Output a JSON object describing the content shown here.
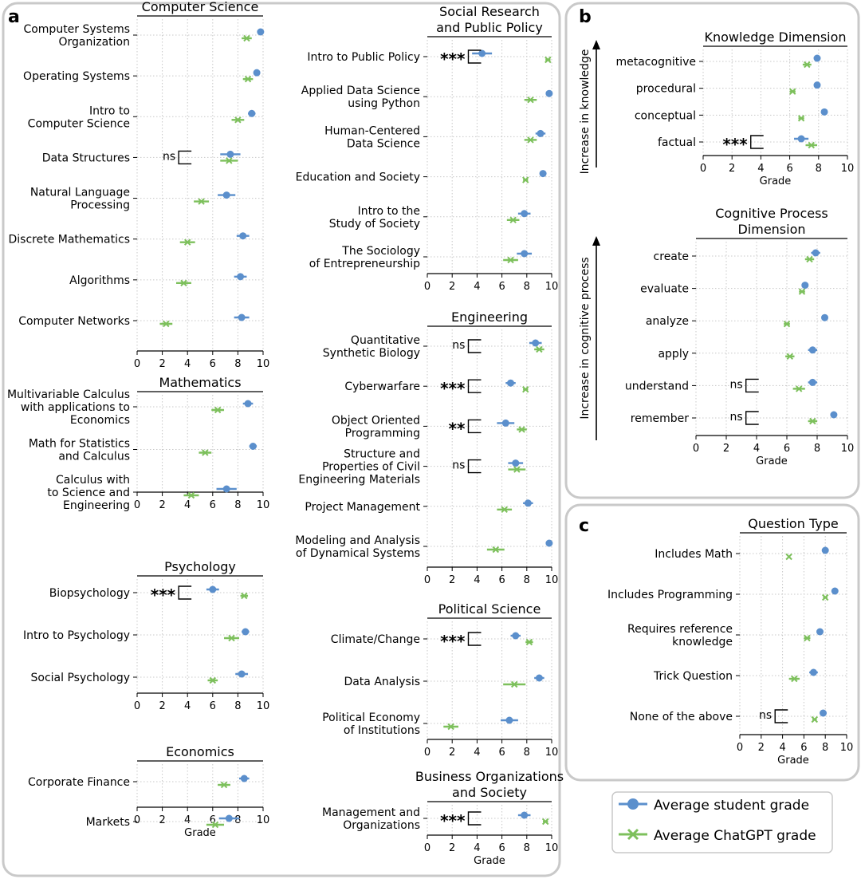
{
  "panel_labels": [
    "a",
    "b",
    "c"
  ],
  "legend": {
    "student_label": "Average student grade",
    "chatgpt_label": "Average ChatGPT grade"
  },
  "colors": {
    "student": "#5b8fcc",
    "chatgpt": "#7dc05c",
    "grid": "#c8c8c8",
    "panel_border": "#c9c9c9"
  },
  "side_annotations": {
    "knowledge": "Increase in knowledge",
    "cognitive": "Increase in cognitive process"
  },
  "chart_data": [
    {
      "type": "dot-whisker",
      "title": "Computer Science",
      "xlabel": "",
      "xlim": [
        0,
        10
      ],
      "xticks": [
        0,
        2,
        4,
        6,
        8,
        10
      ],
      "categories": [
        "Computer Systems\nOrganization",
        "Operating Systems",
        "Intro to\nComputer Science",
        "Data Structures",
        "Natural Language\nProcessing",
        "Discrete Mathematics",
        "Algorithms",
        "Computer Networks"
      ],
      "series": [
        {
          "name": "Average student grade",
          "values": [
            9.8,
            9.5,
            9.1,
            7.4,
            7.1,
            8.4,
            8.2,
            8.3
          ],
          "errors": [
            0.2,
            0.2,
            0.3,
            0.8,
            0.7,
            0.5,
            0.5,
            0.6
          ]
        },
        {
          "name": "Average ChatGPT grade",
          "values": [
            8.7,
            8.8,
            8.0,
            7.3,
            5.1,
            4.0,
            3.7,
            2.3
          ],
          "errors": [
            0.4,
            0.4,
            0.5,
            0.7,
            0.6,
            0.6,
            0.6,
            0.5
          ]
        }
      ],
      "annotations": [
        {
          "category": "Data Structures",
          "text": "ns"
        }
      ]
    },
    {
      "type": "dot-whisker",
      "title": "Mathematics",
      "xlabel": "",
      "xlim": [
        0,
        10
      ],
      "xticks": [
        0,
        2,
        4,
        6,
        8,
        10
      ],
      "categories": [
        "Multivariable Calculus\nwith applications to\nEconomics",
        "Math for Statistics\nand Calculus",
        "Calculus with\nto Science and\nEngineering"
      ],
      "series": [
        {
          "name": "Average student grade",
          "values": [
            8.8,
            9.2,
            7.1
          ],
          "errors": [
            0.4,
            0.3,
            0.8
          ]
        },
        {
          "name": "Average ChatGPT grade",
          "values": [
            6.4,
            5.4,
            4.3
          ],
          "errors": [
            0.5,
            0.5,
            0.6
          ]
        }
      ],
      "annotations": []
    },
    {
      "type": "dot-whisker",
      "title": "Psychology",
      "xlabel": "",
      "xlim": [
        0,
        10
      ],
      "xticks": [
        0,
        2,
        4,
        6,
        8,
        10
      ],
      "categories": [
        "Biopsychology",
        "Intro to Psychology",
        "Social Psychology"
      ],
      "series": [
        {
          "name": "Average student grade",
          "values": [
            6.0,
            8.6,
            8.3
          ],
          "errors": [
            0.5,
            0.3,
            0.5
          ]
        },
        {
          "name": "Average ChatGPT grade",
          "values": [
            8.5,
            7.5,
            6.0
          ],
          "errors": [
            0.3,
            0.6,
            0.4
          ]
        }
      ],
      "annotations": [
        {
          "category": "Biopsychology",
          "text": "***"
        }
      ]
    },
    {
      "type": "dot-whisker",
      "title": "Economics",
      "xlabel": "Grade",
      "xlim": [
        0,
        10
      ],
      "xticks": [
        0,
        2,
        4,
        6,
        8,
        10
      ],
      "categories": [
        "Corporate Finance",
        "Markets"
      ],
      "series": [
        {
          "name": "Average student grade",
          "values": [
            8.5,
            7.3
          ],
          "errors": [
            0.4,
            0.8
          ]
        },
        {
          "name": "Average ChatGPT grade",
          "values": [
            6.9,
            6.2
          ],
          "errors": [
            0.5,
            0.7
          ]
        }
      ],
      "annotations": []
    },
    {
      "type": "dot-whisker",
      "title": "Social Research\nand Public Policy",
      "xlabel": "",
      "xlim": [
        0,
        10
      ],
      "xticks": [
        0,
        2,
        4,
        6,
        8,
        10
      ],
      "categories": [
        "Intro to Public Policy",
        "Applied Data Science\nusing Python",
        "Human-Centered\nData Science",
        "Education and Society",
        "Intro to the\nStudy of Society",
        "The Sociology\nof Entrepreneurship"
      ],
      "series": [
        {
          "name": "Average student grade",
          "values": [
            4.4,
            9.8,
            9.1,
            9.3,
            7.8,
            7.8
          ],
          "errors": [
            0.8,
            0.2,
            0.4,
            0.1,
            0.5,
            0.6
          ]
        },
        {
          "name": "Average ChatGPT grade",
          "values": [
            9.7,
            8.3,
            8.3,
            7.9,
            6.9,
            6.7
          ],
          "errors": [
            0.2,
            0.5,
            0.5,
            0.2,
            0.5,
            0.6
          ]
        }
      ],
      "annotations": [
        {
          "category": "Intro to Public Policy",
          "text": "***"
        }
      ]
    },
    {
      "type": "dot-whisker",
      "title": "Engineering",
      "xlabel": "",
      "xlim": [
        0,
        10
      ],
      "xticks": [
        0,
        2,
        4,
        6,
        8,
        10
      ],
      "categories": [
        "Quantitative\nSynthetic Biology",
        "Cyberwarfare",
        "Object Oriented\nProgramming",
        "Structure and\nProperties of Civil\nEngineering Materials",
        "Project Management",
        "Modeling and Analysis\nof Dynamical Systems"
      ],
      "series": [
        {
          "name": "Average student grade",
          "values": [
            8.7,
            6.7,
            6.3,
            7.1,
            8.1,
            9.8
          ],
          "errors": [
            0.5,
            0.4,
            0.7,
            0.6,
            0.4,
            0.1
          ]
        },
        {
          "name": "Average ChatGPT grade",
          "values": [
            9.0,
            7.9,
            7.6,
            7.2,
            6.2,
            5.5
          ],
          "errors": [
            0.4,
            0.2,
            0.4,
            0.7,
            0.6,
            0.7
          ]
        }
      ],
      "annotations": [
        {
          "category": "Quantitative\nSynthetic Biology",
          "text": "ns"
        },
        {
          "category": "Cyberwarfare",
          "text": "***"
        },
        {
          "category": "Object Oriented\nProgramming",
          "text": "**"
        },
        {
          "category": "Structure and\nProperties of Civil\nEngineering Materials",
          "text": "ns"
        }
      ]
    },
    {
      "type": "dot-whisker",
      "title": "Political Science",
      "xlabel": "",
      "xlim": [
        0,
        10
      ],
      "xticks": [
        0,
        2,
        4,
        6,
        8,
        10
      ],
      "categories": [
        "Climate/Change",
        "Data Analysis",
        "Political Economy\nof Institutions"
      ],
      "series": [
        {
          "name": "Average student grade",
          "values": [
            7.1,
            9.0,
            6.6
          ],
          "errors": [
            0.4,
            0.4,
            0.7
          ]
        },
        {
          "name": "Average ChatGPT grade",
          "values": [
            8.2,
            7.0,
            1.9
          ],
          "errors": [
            0.3,
            0.9,
            0.6
          ]
        }
      ],
      "annotations": [
        {
          "category": "Climate/Change",
          "text": "***"
        }
      ]
    },
    {
      "type": "dot-whisker",
      "title": "Business Organizations\nand Society",
      "xlabel": "Grade",
      "xlim": [
        0,
        10
      ],
      "xticks": [
        0,
        2,
        4,
        6,
        8,
        10
      ],
      "categories": [
        "Management and\nOrganizations"
      ],
      "series": [
        {
          "name": "Average student grade",
          "values": [
            7.8
          ],
          "errors": [
            0.5
          ]
        },
        {
          "name": "Average ChatGPT grade",
          "values": [
            9.5
          ],
          "errors": [
            0.2
          ]
        }
      ],
      "annotations": [
        {
          "category": "Management and\nOrganizations",
          "text": "***"
        }
      ]
    },
    {
      "type": "dot-whisker",
      "title": "Knowledge Dimension",
      "xlabel": "Grade",
      "xlim": [
        0,
        10
      ],
      "xticks": [
        0,
        2,
        4,
        6,
        8,
        10
      ],
      "categories": [
        "metacognitive",
        "procedural",
        "conceptual",
        "factual"
      ],
      "series": [
        {
          "name": "Average student grade",
          "values": [
            7.9,
            7.9,
            8.4,
            6.8
          ],
          "errors": [
            0.2,
            0.1,
            0.1,
            0.5
          ]
        },
        {
          "name": "Average ChatGPT grade",
          "values": [
            7.2,
            6.2,
            6.8,
            7.5
          ],
          "errors": [
            0.3,
            0.2,
            0.2,
            0.4
          ]
        }
      ],
      "annotations": [
        {
          "category": "factual",
          "text": "***"
        }
      ]
    },
    {
      "type": "dot-whisker",
      "title": "Cognitive Process\nDimension",
      "xlabel": "Grade",
      "xlim": [
        0,
        10
      ],
      "xticks": [
        0,
        2,
        4,
        6,
        8,
        10
      ],
      "categories": [
        "create",
        "evaluate",
        "analyze",
        "apply",
        "understand",
        "remember"
      ],
      "series": [
        {
          "name": "Average student grade",
          "values": [
            7.9,
            7.2,
            8.5,
            7.7,
            7.7,
            9.1
          ],
          "errors": [
            0.3,
            0.2,
            0.1,
            0.3,
            0.3,
            0.1
          ]
        },
        {
          "name": "Average ChatGPT grade",
          "values": [
            7.5,
            7.0,
            6.0,
            6.2,
            6.8,
            7.7
          ],
          "errors": [
            0.3,
            0.2,
            0.2,
            0.3,
            0.4,
            0.3
          ]
        }
      ],
      "annotations": [
        {
          "category": "understand",
          "text": "ns"
        },
        {
          "category": "remember",
          "text": "ns"
        }
      ]
    },
    {
      "type": "dot-whisker",
      "title": "Question Type",
      "xlabel": "Grade",
      "xlim": [
        0,
        10
      ],
      "xticks": [
        0,
        2,
        4,
        6,
        8,
        10
      ],
      "categories": [
        "Includes Math",
        "Includes Programming",
        "Requires reference\nknowledge",
        "Trick Question",
        "None of the above"
      ],
      "series": [
        {
          "name": "Average student grade",
          "values": [
            8.0,
            8.9,
            7.5,
            6.9,
            7.8
          ],
          "errors": [
            0.1,
            0.1,
            0.2,
            0.4,
            0.2
          ]
        },
        {
          "name": "Average ChatGPT grade",
          "values": [
            4.6,
            8.0,
            6.3,
            5.1,
            7.0
          ],
          "errors": [
            0.1,
            0.2,
            0.3,
            0.5,
            0.2
          ]
        }
      ],
      "annotations": [
        {
          "category": "None of the above",
          "text": "ns"
        }
      ]
    }
  ]
}
